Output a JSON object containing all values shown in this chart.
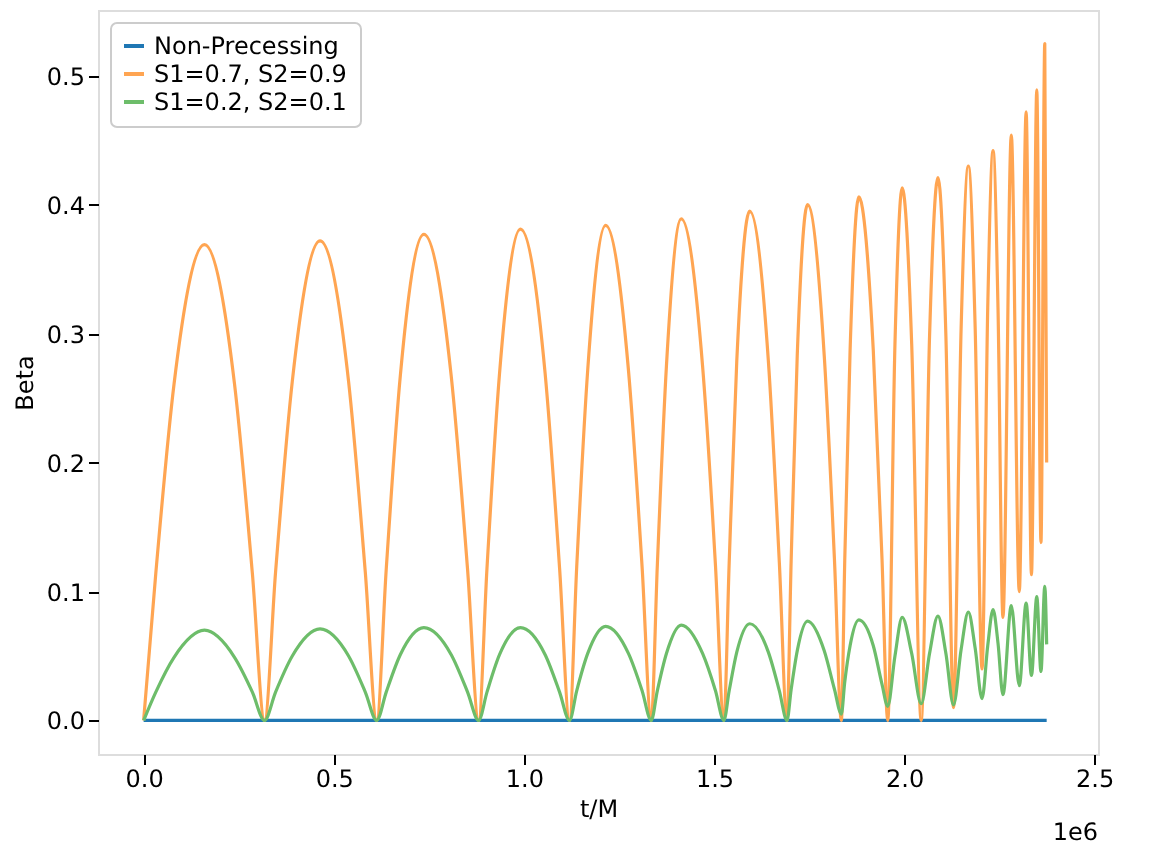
{
  "chart_data": {
    "type": "line",
    "xlabel": "t/M",
    "ylabel": "Beta",
    "annotations": [
      "1e6"
    ],
    "x": [
      0,
      0.032,
      0.08,
      0.16,
      0.239,
      0.286,
      0.318,
      0.347,
      0.391,
      0.464,
      0.539,
      0.583,
      0.613,
      0.638,
      0.675,
      0.737,
      0.809,
      0.852,
      0.881,
      0.903,
      0.936,
      0.991,
      1.056,
      1.094,
      1.12,
      1.139,
      1.168,
      1.215,
      1.275,
      1.311,
      1.335,
      1.351,
      1.375,
      1.414,
      1.47,
      1.504,
      1.526,
      1.54,
      1.56,
      1.594,
      1.643,
      1.672,
      1.692,
      1.703,
      1.719,
      1.746,
      1.79,
      1.817,
      1.835,
      1.844,
      1.858,
      1.881,
      1.919,
      1.942,
      1.957,
      1.976,
      1.995,
      2.02,
      2.045,
      2.067,
      2.089,
      2.11,
      2.13,
      2.15,
      2.169,
      2.187,
      2.205,
      2.22,
      2.234,
      2.247,
      2.26,
      2.282,
      2.303,
      2.321,
      2.335,
      2.349,
      2.36,
      2.37,
      2.375
    ],
    "series": [
      {
        "name": "Non-Precessing",
        "color": "#1f77b4",
        "x": [
          0,
          2.375
        ],
        "values": [
          0,
          0
        ]
      },
      {
        "name": "S1=0.7, S2=0.9",
        "color": "#ffa552",
        "values": [
          0,
          0.114,
          0.261,
          0.369,
          0.261,
          0.114,
          0,
          0.115,
          0.263,
          0.372,
          0.263,
          0.115,
          0,
          0.117,
          0.267,
          0.377,
          0.267,
          0.117,
          0,
          0.118,
          0.269,
          0.381,
          0.269,
          0.118,
          0,
          0.119,
          0.272,
          0.384,
          0.272,
          0.119,
          0,
          0.12,
          0.275,
          0.389,
          0.275,
          0.12,
          0,
          0.122,
          0.279,
          0.395,
          0.279,
          0.122,
          0,
          0.124,
          0.283,
          0.4,
          0.283,
          0.124,
          0,
          0.125,
          0.287,
          0.406,
          0.287,
          0.125,
          0,
          0.292,
          0.413,
          0.292,
          0,
          0.298,
          0.421,
          0.298,
          0.01,
          0.304,
          0.43,
          0.304,
          0.04,
          0.32,
          0.442,
          0.32,
          0.08,
          0.454,
          0.1,
          0.472,
          0.113,
          0.489,
          0.138,
          0.525,
          0.2
        ]
      },
      {
        "name": "S1=0.2, S2=0.1",
        "color": "#6dbd6a",
        "values": [
          0,
          0.022,
          0.049,
          0.07,
          0.049,
          0.022,
          0,
          0.022,
          0.05,
          0.071,
          0.05,
          0.022,
          0,
          0.022,
          0.051,
          0.072,
          0.051,
          0.022,
          0,
          0.022,
          0.051,
          0.072,
          0.051,
          0.022,
          0,
          0.023,
          0.052,
          0.073,
          0.052,
          0.023,
          0,
          0.023,
          0.052,
          0.074,
          0.052,
          0.023,
          0,
          0.023,
          0.053,
          0.075,
          0.053,
          0.023,
          0,
          0.024,
          0.054,
          0.077,
          0.054,
          0.024,
          0.005,
          0.03,
          0.058,
          0.078,
          0.058,
          0.028,
          0.011,
          0.05,
          0.08,
          0.052,
          0.013,
          0.052,
          0.081,
          0.052,
          0.012,
          0.055,
          0.084,
          0.056,
          0.017,
          0.058,
          0.086,
          0.06,
          0.02,
          0.089,
          0.027,
          0.091,
          0.035,
          0.096,
          0.038,
          0.104,
          0.059
        ]
      }
    ],
    "xlim": [
      -0.12,
      2.51
    ],
    "ylim": [
      -0.026,
      0.551
    ],
    "xticks": [
      {
        "value": 0,
        "label": "0.0"
      },
      0.5,
      {
        "value": 1,
        "label": "1.0"
      },
      1.5,
      {
        "value": 2,
        "label": "2.0"
      },
      2.5
    ],
    "yticks": [
      {
        "value": 0,
        "label": "0.0"
      },
      0.1,
      0.2,
      0.3,
      0.4,
      0.5
    ],
    "grid": false,
    "legend": "top left",
    "marker": "none",
    "line_style": "solid"
  }
}
